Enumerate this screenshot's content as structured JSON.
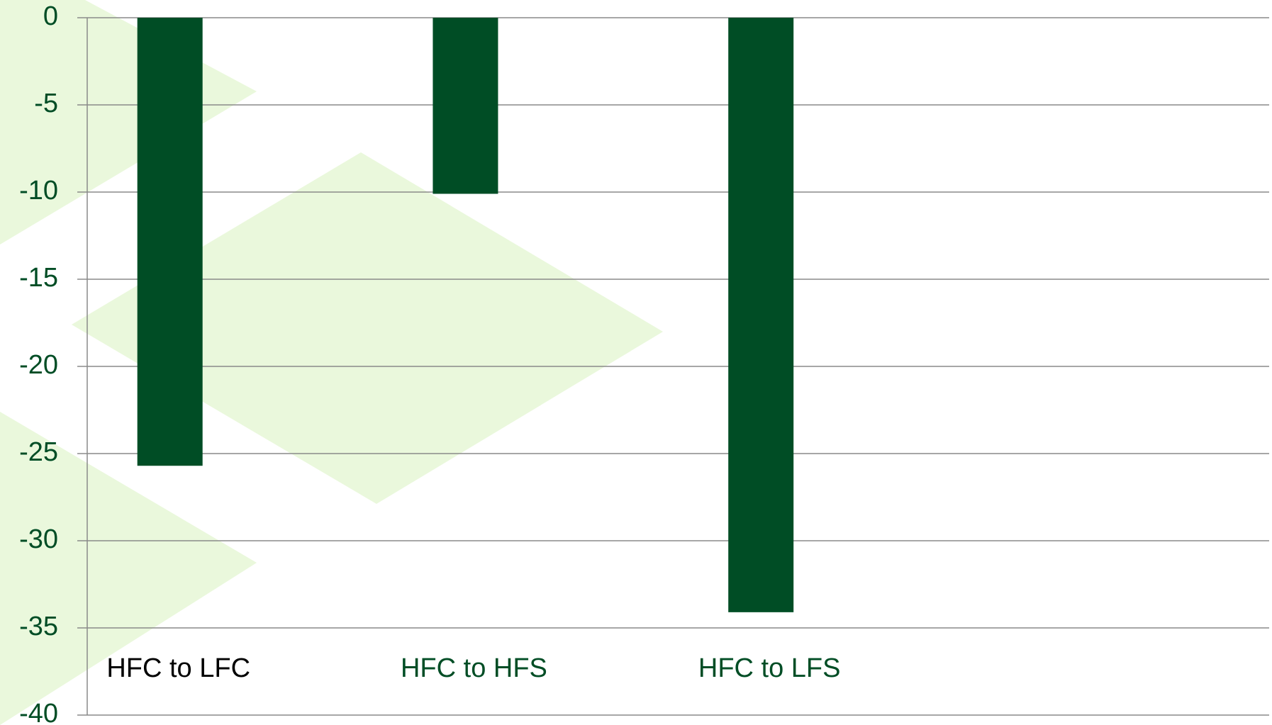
{
  "chart_data": {
    "type": "bar",
    "categories": [
      "HFC to LFC",
      "HFC to HFS",
      "HFC to LFS"
    ],
    "values": [
      -25.7,
      -10.1,
      -34.1
    ],
    "color": "#004d25",
    "label_colors": [
      "#000000",
      "#004d25",
      "#004d25"
    ],
    "tick_label_color": "#004d25",
    "ylim": [
      -40,
      0
    ],
    "yticks": [
      0,
      -5,
      -10,
      -15,
      -20,
      -25,
      -30,
      -35,
      -40
    ],
    "grid": true
  }
}
